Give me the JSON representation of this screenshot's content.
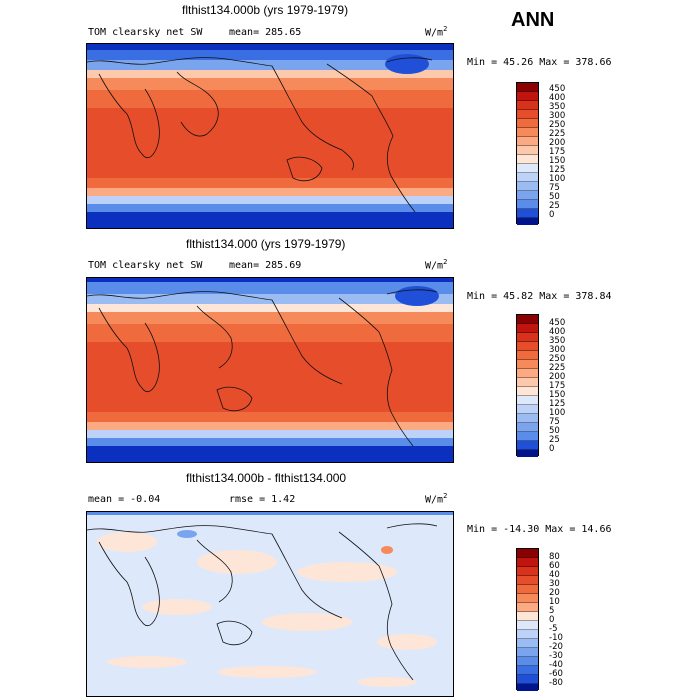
{
  "season": "ANN",
  "panels": [
    {
      "title": "flthist134.000b (yrs 1979-1979)",
      "field": "TOM clearsky net SW",
      "stat1": "mean= 285.65",
      "stat2": "",
      "units": "W/m",
      "units_exp": "2",
      "minmax": "Min =  45.26 Max = 378.66",
      "palette": "absolute",
      "cb_labels": [
        "450",
        "400",
        "350",
        "300",
        "250",
        "225",
        "200",
        "175",
        "150",
        "125",
        "100",
        "75",
        "50",
        "25",
        "0"
      ]
    },
    {
      "title": "flthist134.000 (yrs 1979-1979)",
      "field": "TOM clearsky net SW",
      "stat1": "mean= 285.69",
      "stat2": "",
      "units": "W/m",
      "units_exp": "2",
      "minmax": "Min =  45.82 Max = 378.84",
      "palette": "absolute",
      "cb_labels": [
        "450",
        "400",
        "350",
        "300",
        "250",
        "225",
        "200",
        "175",
        "150",
        "125",
        "100",
        "75",
        "50",
        "25",
        "0"
      ]
    },
    {
      "title": "flthist134.000b - flthist134.000",
      "field": "",
      "stat1": "mean =  -0.04",
      "stat2": "rmse =   1.42",
      "units": "W/m",
      "units_exp": "2",
      "minmax": "Min = -14.30 Max =  14.66",
      "palette": "difference",
      "cb_labels": [
        "80",
        "60",
        "40",
        "30",
        "20",
        "10",
        "5",
        "0",
        "-5",
        "-10",
        "-20",
        "-30",
        "-40",
        "-60",
        "-80"
      ]
    }
  ],
  "colors": {
    "absolute": [
      "#8b0000",
      "#c0140e",
      "#d8321c",
      "#e64d2a",
      "#ef6a3d",
      "#f78a5a",
      "#fbaa84",
      "#fcc9ac",
      "#fde6d8",
      "#dde8fb",
      "#bcd2f8",
      "#9bbcf3",
      "#7aa4ee",
      "#5a8cea",
      "#3a6fe3",
      "#2050d8",
      "#0b2fbf",
      "#00158c"
    ],
    "difference": [
      "#8b0000",
      "#c0140e",
      "#d8321c",
      "#e64d2a",
      "#ef6a3d",
      "#f78a5a",
      "#fbaa84",
      "#fde6d8",
      "#dde8fb",
      "#bcd2f8",
      "#9bbcf3",
      "#7aa4ee",
      "#5a8cea",
      "#3a6fe3",
      "#2050d8",
      "#00158c"
    ]
  }
}
